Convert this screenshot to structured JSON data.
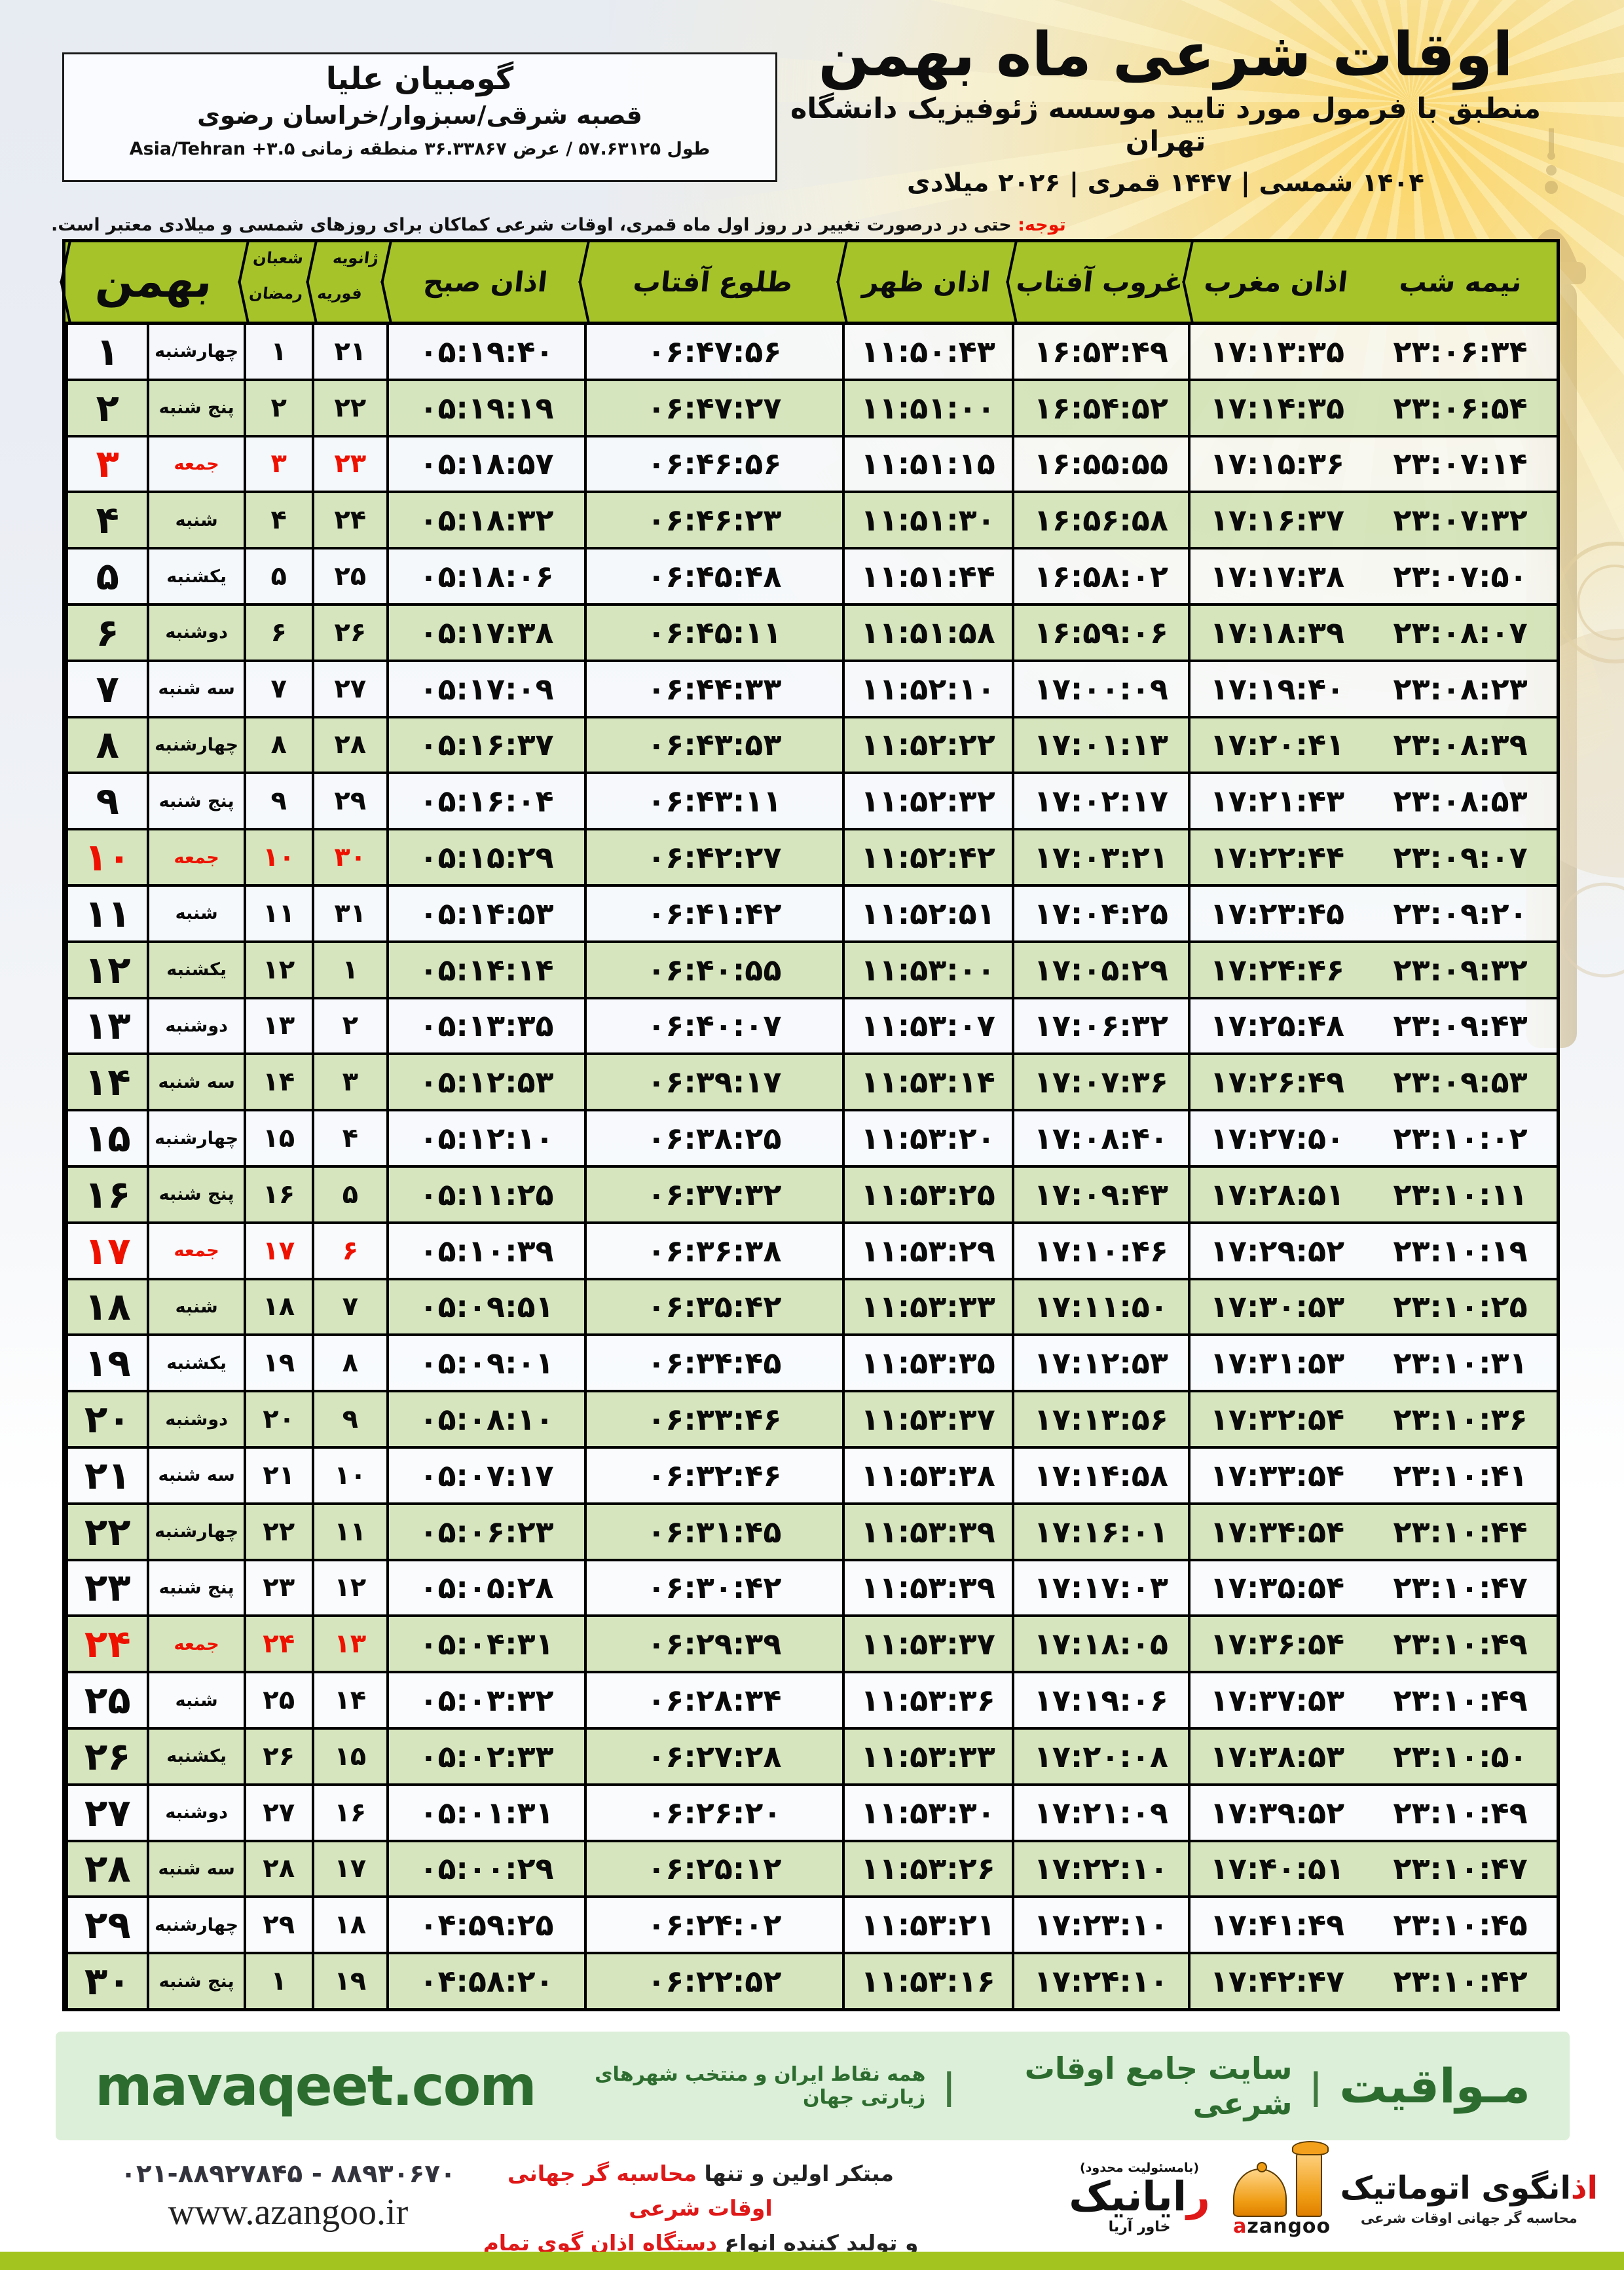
{
  "header": {
    "title": "اوقات شرعی ماه بهمن",
    "subtitle": "منطبق با فرمول مورد تایید موسسه ژئوفیزیک دانشگاه تهران",
    "dates": "۱۴۰۴ شمسی | ۱۴۴۷ قمری | ۲۰۲۶ میلادی"
  },
  "location": {
    "name": "گومبیان علیا",
    "region": "قصبه شرقی/سبزوار/خراسان رضوی",
    "coords": "طول ۵۷.۶۳۱۲۵ / عرض ۳۶.۳۳۸۶۷ منطقه زمانی",
    "timezone": "Asia/Tehran +۳.۵"
  },
  "notice": {
    "label": "توجه:",
    "text": "حتی در درصورت تغییر در روز اول ماه قمری، اوقات شرعی کماکان برای روزهای شمسی و میلادی معتبر است."
  },
  "table": {
    "headers": {
      "month": "بهمن",
      "hijri_top": "شعبان",
      "hijri_bottom": "رمضان",
      "greg_top": "ژانویه",
      "greg_bottom": "فوریه",
      "fajr": "اذان صبح",
      "sunrise": "طلوع آفتاب",
      "dhuhr": "اذان ظهر",
      "sunset": "غروب آفتاب",
      "maghrib": "اذان مغرب",
      "midnight": "نیمه شب"
    },
    "rows": [
      {
        "day": "۱",
        "weekday": "چهارشنبه",
        "hijri": "۱",
        "greg": "۲۱",
        "fajr": "۰۵:۱۹:۴۰",
        "sunrise": "۰۶:۴۷:۵۶",
        "dhuhr": "۱۱:۵۰:۴۳",
        "sunset": "۱۶:۵۳:۴۹",
        "maghrib": "۱۷:۱۳:۳۵",
        "midnight": "۲۳:۰۶:۳۴",
        "friday": false
      },
      {
        "day": "۲",
        "weekday": "پنج شنبه",
        "hijri": "۲",
        "greg": "۲۲",
        "fajr": "۰۵:۱۹:۱۹",
        "sunrise": "۰۶:۴۷:۲۷",
        "dhuhr": "۱۱:۵۱:۰۰",
        "sunset": "۱۶:۵۴:۵۲",
        "maghrib": "۱۷:۱۴:۳۵",
        "midnight": "۲۳:۰۶:۵۴",
        "friday": false
      },
      {
        "day": "۳",
        "weekday": "جمعه",
        "hijri": "۳",
        "greg": "۲۳",
        "fajr": "۰۵:۱۸:۵۷",
        "sunrise": "۰۶:۴۶:۵۶",
        "dhuhr": "۱۱:۵۱:۱۵",
        "sunset": "۱۶:۵۵:۵۵",
        "maghrib": "۱۷:۱۵:۳۶",
        "midnight": "۲۳:۰۷:۱۴",
        "friday": true
      },
      {
        "day": "۴",
        "weekday": "شنبه",
        "hijri": "۴",
        "greg": "۲۴",
        "fajr": "۰۵:۱۸:۳۲",
        "sunrise": "۰۶:۴۶:۲۳",
        "dhuhr": "۱۱:۵۱:۳۰",
        "sunset": "۱۶:۵۶:۵۸",
        "maghrib": "۱۷:۱۶:۳۷",
        "midnight": "۲۳:۰۷:۳۲",
        "friday": false
      },
      {
        "day": "۵",
        "weekday": "یکشنبه",
        "hijri": "۵",
        "greg": "۲۵",
        "fajr": "۰۵:۱۸:۰۶",
        "sunrise": "۰۶:۴۵:۴۸",
        "dhuhr": "۱۱:۵۱:۴۴",
        "sunset": "۱۶:۵۸:۰۲",
        "maghrib": "۱۷:۱۷:۳۸",
        "midnight": "۲۳:۰۷:۵۰",
        "friday": false
      },
      {
        "day": "۶",
        "weekday": "دوشنبه",
        "hijri": "۶",
        "greg": "۲۶",
        "fajr": "۰۵:۱۷:۳۸",
        "sunrise": "۰۶:۴۵:۱۱",
        "dhuhr": "۱۱:۵۱:۵۸",
        "sunset": "۱۶:۵۹:۰۶",
        "maghrib": "۱۷:۱۸:۳۹",
        "midnight": "۲۳:۰۸:۰۷",
        "friday": false
      },
      {
        "day": "۷",
        "weekday": "سه شنبه",
        "hijri": "۷",
        "greg": "۲۷",
        "fajr": "۰۵:۱۷:۰۹",
        "sunrise": "۰۶:۴۴:۳۳",
        "dhuhr": "۱۱:۵۲:۱۰",
        "sunset": "۱۷:۰۰:۰۹",
        "maghrib": "۱۷:۱۹:۴۰",
        "midnight": "۲۳:۰۸:۲۳",
        "friday": false
      },
      {
        "day": "۸",
        "weekday": "چهارشنبه",
        "hijri": "۸",
        "greg": "۲۸",
        "fajr": "۰۵:۱۶:۳۷",
        "sunrise": "۰۶:۴۳:۵۳",
        "dhuhr": "۱۱:۵۲:۲۲",
        "sunset": "۱۷:۰۱:۱۳",
        "maghrib": "۱۷:۲۰:۴۱",
        "midnight": "۲۳:۰۸:۳۹",
        "friday": false
      },
      {
        "day": "۹",
        "weekday": "پنج شنبه",
        "hijri": "۹",
        "greg": "۲۹",
        "fajr": "۰۵:۱۶:۰۴",
        "sunrise": "۰۶:۴۳:۱۱",
        "dhuhr": "۱۱:۵۲:۳۲",
        "sunset": "۱۷:۰۲:۱۷",
        "maghrib": "۱۷:۲۱:۴۳",
        "midnight": "۲۳:۰۸:۵۳",
        "friday": false
      },
      {
        "day": "۱۰",
        "weekday": "جمعه",
        "hijri": "۱۰",
        "greg": "۳۰",
        "fajr": "۰۵:۱۵:۲۹",
        "sunrise": "۰۶:۴۲:۲۷",
        "dhuhr": "۱۱:۵۲:۴۲",
        "sunset": "۱۷:۰۳:۲۱",
        "maghrib": "۱۷:۲۲:۴۴",
        "midnight": "۲۳:۰۹:۰۷",
        "friday": true
      },
      {
        "day": "۱۱",
        "weekday": "شنبه",
        "hijri": "۱۱",
        "greg": "۳۱",
        "fajr": "۰۵:۱۴:۵۳",
        "sunrise": "۰۶:۴۱:۴۲",
        "dhuhr": "۱۱:۵۲:۵۱",
        "sunset": "۱۷:۰۴:۲۵",
        "maghrib": "۱۷:۲۳:۴۵",
        "midnight": "۲۳:۰۹:۲۰",
        "friday": false
      },
      {
        "day": "۱۲",
        "weekday": "یکشنبه",
        "hijri": "۱۲",
        "greg": "۱",
        "fajr": "۰۵:۱۴:۱۴",
        "sunrise": "۰۶:۴۰:۵۵",
        "dhuhr": "۱۱:۵۳:۰۰",
        "sunset": "۱۷:۰۵:۲۹",
        "maghrib": "۱۷:۲۴:۴۶",
        "midnight": "۲۳:۰۹:۳۲",
        "friday": false
      },
      {
        "day": "۱۳",
        "weekday": "دوشنبه",
        "hijri": "۱۳",
        "greg": "۲",
        "fajr": "۰۵:۱۳:۳۵",
        "sunrise": "۰۶:۴۰:۰۷",
        "dhuhr": "۱۱:۵۳:۰۷",
        "sunset": "۱۷:۰۶:۳۲",
        "maghrib": "۱۷:۲۵:۴۸",
        "midnight": "۲۳:۰۹:۴۳",
        "friday": false
      },
      {
        "day": "۱۴",
        "weekday": "سه شنبه",
        "hijri": "۱۴",
        "greg": "۳",
        "fajr": "۰۵:۱۲:۵۳",
        "sunrise": "۰۶:۳۹:۱۷",
        "dhuhr": "۱۱:۵۳:۱۴",
        "sunset": "۱۷:۰۷:۳۶",
        "maghrib": "۱۷:۲۶:۴۹",
        "midnight": "۲۳:۰۹:۵۳",
        "friday": false
      },
      {
        "day": "۱۵",
        "weekday": "چهارشنبه",
        "hijri": "۱۵",
        "greg": "۴",
        "fajr": "۰۵:۱۲:۱۰",
        "sunrise": "۰۶:۳۸:۲۵",
        "dhuhr": "۱۱:۵۳:۲۰",
        "sunset": "۱۷:۰۸:۴۰",
        "maghrib": "۱۷:۲۷:۵۰",
        "midnight": "۲۳:۱۰:۰۲",
        "friday": false
      },
      {
        "day": "۱۶",
        "weekday": "پنج شنبه",
        "hijri": "۱۶",
        "greg": "۵",
        "fajr": "۰۵:۱۱:۲۵",
        "sunrise": "۰۶:۳۷:۳۲",
        "dhuhr": "۱۱:۵۳:۲۵",
        "sunset": "۱۷:۰۹:۴۳",
        "maghrib": "۱۷:۲۸:۵۱",
        "midnight": "۲۳:۱۰:۱۱",
        "friday": false
      },
      {
        "day": "۱۷",
        "weekday": "جمعه",
        "hijri": "۱۷",
        "greg": "۶",
        "fajr": "۰۵:۱۰:۳۹",
        "sunrise": "۰۶:۳۶:۳۸",
        "dhuhr": "۱۱:۵۳:۲۹",
        "sunset": "۱۷:۱۰:۴۶",
        "maghrib": "۱۷:۲۹:۵۲",
        "midnight": "۲۳:۱۰:۱۹",
        "friday": true
      },
      {
        "day": "۱۸",
        "weekday": "شنبه",
        "hijri": "۱۸",
        "greg": "۷",
        "fajr": "۰۵:۰۹:۵۱",
        "sunrise": "۰۶:۳۵:۴۲",
        "dhuhr": "۱۱:۵۳:۳۳",
        "sunset": "۱۷:۱۱:۵۰",
        "maghrib": "۱۷:۳۰:۵۳",
        "midnight": "۲۳:۱۰:۲۵",
        "friday": false
      },
      {
        "day": "۱۹",
        "weekday": "یکشنبه",
        "hijri": "۱۹",
        "greg": "۸",
        "fajr": "۰۵:۰۹:۰۱",
        "sunrise": "۰۶:۳۴:۴۵",
        "dhuhr": "۱۱:۵۳:۳۵",
        "sunset": "۱۷:۱۲:۵۳",
        "maghrib": "۱۷:۳۱:۵۳",
        "midnight": "۲۳:۱۰:۳۱",
        "friday": false
      },
      {
        "day": "۲۰",
        "weekday": "دوشنبه",
        "hijri": "۲۰",
        "greg": "۹",
        "fajr": "۰۵:۰۸:۱۰",
        "sunrise": "۰۶:۳۳:۴۶",
        "dhuhr": "۱۱:۵۳:۳۷",
        "sunset": "۱۷:۱۳:۵۶",
        "maghrib": "۱۷:۳۲:۵۴",
        "midnight": "۲۳:۱۰:۳۶",
        "friday": false
      },
      {
        "day": "۲۱",
        "weekday": "سه شنبه",
        "hijri": "۲۱",
        "greg": "۱۰",
        "fajr": "۰۵:۰۷:۱۷",
        "sunrise": "۰۶:۳۲:۴۶",
        "dhuhr": "۱۱:۵۳:۳۸",
        "sunset": "۱۷:۱۴:۵۸",
        "maghrib": "۱۷:۳۳:۵۴",
        "midnight": "۲۳:۱۰:۴۱",
        "friday": false
      },
      {
        "day": "۲۲",
        "weekday": "چهارشنبه",
        "hijri": "۲۲",
        "greg": "۱۱",
        "fajr": "۰۵:۰۶:۲۳",
        "sunrise": "۰۶:۳۱:۴۵",
        "dhuhr": "۱۱:۵۳:۳۹",
        "sunset": "۱۷:۱۶:۰۱",
        "maghrib": "۱۷:۳۴:۵۴",
        "midnight": "۲۳:۱۰:۴۴",
        "friday": false
      },
      {
        "day": "۲۳",
        "weekday": "پنج شنبه",
        "hijri": "۲۳",
        "greg": "۱۲",
        "fajr": "۰۵:۰۵:۲۸",
        "sunrise": "۰۶:۳۰:۴۲",
        "dhuhr": "۱۱:۵۳:۳۹",
        "sunset": "۱۷:۱۷:۰۳",
        "maghrib": "۱۷:۳۵:۵۴",
        "midnight": "۲۳:۱۰:۴۷",
        "friday": false
      },
      {
        "day": "۲۴",
        "weekday": "جمعه",
        "hijri": "۲۴",
        "greg": "۱۳",
        "fajr": "۰۵:۰۴:۳۱",
        "sunrise": "۰۶:۲۹:۳۹",
        "dhuhr": "۱۱:۵۳:۳۷",
        "sunset": "۱۷:۱۸:۰۵",
        "maghrib": "۱۷:۳۶:۵۴",
        "midnight": "۲۳:۱۰:۴۹",
        "friday": true
      },
      {
        "day": "۲۵",
        "weekday": "شنبه",
        "hijri": "۲۵",
        "greg": "۱۴",
        "fajr": "۰۵:۰۳:۳۲",
        "sunrise": "۰۶:۲۸:۳۴",
        "dhuhr": "۱۱:۵۳:۳۶",
        "sunset": "۱۷:۱۹:۰۶",
        "maghrib": "۱۷:۳۷:۵۳",
        "midnight": "۲۳:۱۰:۴۹",
        "friday": false
      },
      {
        "day": "۲۶",
        "weekday": "یکشنبه",
        "hijri": "۲۶",
        "greg": "۱۵",
        "fajr": "۰۵:۰۲:۳۳",
        "sunrise": "۰۶:۲۷:۲۸",
        "dhuhr": "۱۱:۵۳:۳۳",
        "sunset": "۱۷:۲۰:۰۸",
        "maghrib": "۱۷:۳۸:۵۳",
        "midnight": "۲۳:۱۰:۵۰",
        "friday": false
      },
      {
        "day": "۲۷",
        "weekday": "دوشنبه",
        "hijri": "۲۷",
        "greg": "۱۶",
        "fajr": "۰۵:۰۱:۳۱",
        "sunrise": "۰۶:۲۶:۲۰",
        "dhuhr": "۱۱:۵۳:۳۰",
        "sunset": "۱۷:۲۱:۰۹",
        "maghrib": "۱۷:۳۹:۵۲",
        "midnight": "۲۳:۱۰:۴۹",
        "friday": false
      },
      {
        "day": "۲۸",
        "weekday": "سه شنبه",
        "hijri": "۲۸",
        "greg": "۱۷",
        "fajr": "۰۵:۰۰:۲۹",
        "sunrise": "۰۶:۲۵:۱۲",
        "dhuhr": "۱۱:۵۳:۲۶",
        "sunset": "۱۷:۲۲:۱۰",
        "maghrib": "۱۷:۴۰:۵۱",
        "midnight": "۲۳:۱۰:۴۷",
        "friday": false
      },
      {
        "day": "۲۹",
        "weekday": "چهارشنبه",
        "hijri": "۲۹",
        "greg": "۱۸",
        "fajr": "۰۴:۵۹:۲۵",
        "sunrise": "۰۶:۲۴:۰۲",
        "dhuhr": "۱۱:۵۳:۲۱",
        "sunset": "۱۷:۲۳:۱۰",
        "maghrib": "۱۷:۴۱:۴۹",
        "midnight": "۲۳:۱۰:۴۵",
        "friday": false
      },
      {
        "day": "۳۰",
        "weekday": "پنج شنبه",
        "hijri": "۱",
        "greg": "۱۹",
        "fajr": "۰۴:۵۸:۲۰",
        "sunrise": "۰۶:۲۲:۵۲",
        "dhuhr": "۱۱:۵۳:۱۶",
        "sunset": "۱۷:۲۴:۱۰",
        "maghrib": "۱۷:۴۲:۴۷",
        "midnight": "۲۳:۱۰:۴۲",
        "friday": false
      }
    ]
  },
  "footer_band": {
    "brand": "مـواقیت",
    "tagline1": "سایت جامع اوقات شرعی",
    "tagline2": "همه نقاط ایران و منتخب شهرهای زیارتی جهان",
    "separator": "|",
    "url": "mavaqeet.com"
  },
  "bottom": {
    "phone": "۰۲۱-۸۸۹۲۷۸۴۵ - ۸۸۹۳۰۶۷۰",
    "website": "www.azangoo.ir",
    "slogan1_black": "مبتکر اولین و تنها",
    "slogan1_red": "محاسبه گر جهانی اوقات شرعی",
    "slogan2_black": "و تولید کننده انواع",
    "slogan2_red": "دستگاه اذان گوی تمام خودکار ماهواره ای",
    "rayanik_note": "(بامسئولیت محدود)",
    "rayanik_red": "ر",
    "rayanik_rest": "ایانیک",
    "rayanik_sub": "خاور آریا",
    "azangoo_fa_red": "اذ",
    "azangoo_fa_rest": "انگوی اتوماتیک",
    "azangoo_sub": "محاسبه گر جهانی اوقات شرعی",
    "azangoo_latin_a": "a",
    "azangoo_latin_rest": "zangoo"
  },
  "colors": {
    "header_green": "#a6c42a",
    "row_green": "#d3e3b9",
    "friday_red": "#ee1100",
    "band_bg": "#dcefd8",
    "band_text": "#2d6c2f",
    "lime_bar": "#a3c41e",
    "logo_orange": "#ef9c13"
  }
}
